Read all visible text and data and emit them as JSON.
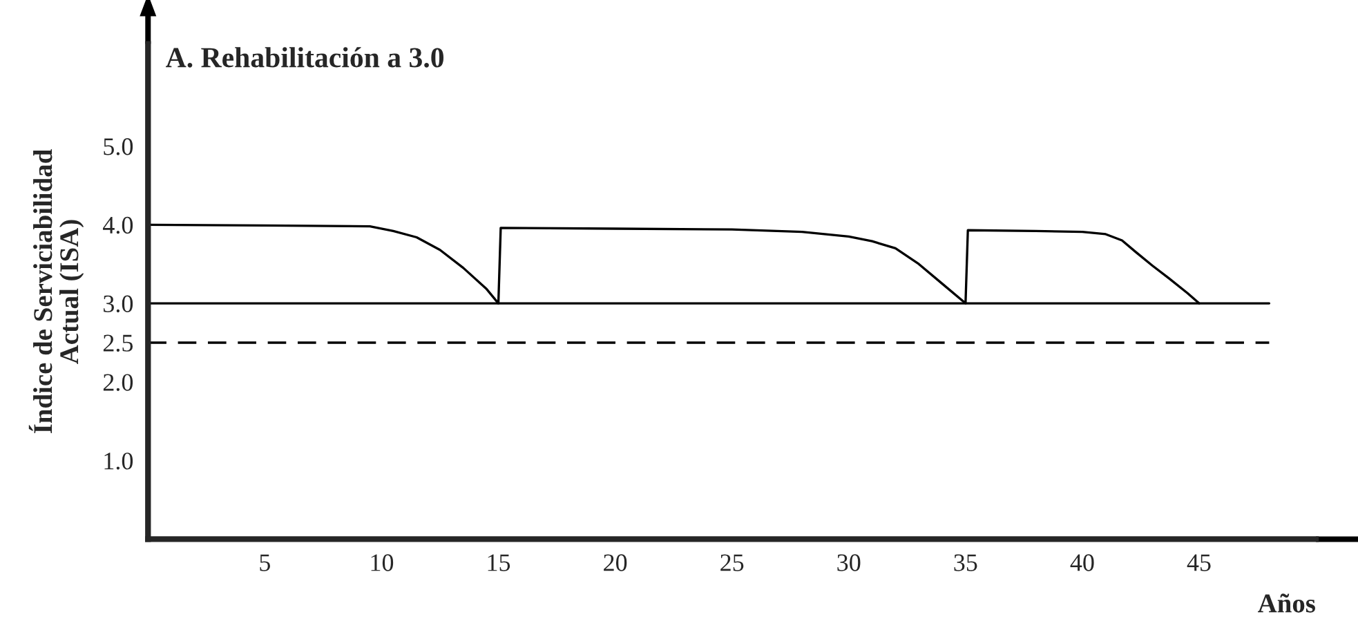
{
  "chart_data": {
    "type": "line",
    "title": "A. Rehabilitación a 3.0",
    "xlabel": "Años",
    "ylabel": "Índice de Serviciabilidad\nActual (ISA)",
    "xlim": [
      0,
      50
    ],
    "ylim": [
      0,
      6.3
    ],
    "xticks": [
      5,
      10,
      15,
      20,
      25,
      30,
      35,
      40,
      45
    ],
    "yticks": [
      {
        "value": 1,
        "label": "1.0"
      },
      {
        "value": 2,
        "label": "2.0"
      },
      {
        "value": 2.5,
        "label": "2.5"
      },
      {
        "value": 3,
        "label": "3.0"
      },
      {
        "value": 4,
        "label": "4.0"
      },
      {
        "value": 5,
        "label": "5.0"
      }
    ],
    "series": [
      {
        "color": "#000000",
        "x": [
          0,
          5,
          9.5,
          10.5,
          11.5,
          12.5,
          13.5,
          14.5,
          15,
          15.1,
          20,
          25,
          28,
          30,
          31,
          32,
          33,
          34,
          35,
          35.1,
          38,
          40,
          41,
          41.7,
          42.3,
          43,
          43.7,
          44.5,
          45
        ],
        "values": [
          4.0,
          3.99,
          3.98,
          3.92,
          3.84,
          3.68,
          3.45,
          3.18,
          3.0,
          3.96,
          3.95,
          3.94,
          3.91,
          3.85,
          3.79,
          3.7,
          3.5,
          3.25,
          3.0,
          3.93,
          3.92,
          3.91,
          3.88,
          3.8,
          3.65,
          3.48,
          3.32,
          3.13,
          3.0
        ]
      }
    ],
    "ref_lines": [
      {
        "axis": "y",
        "value": 3.0,
        "color": "#000000",
        "line_style": "solid"
      },
      {
        "axis": "y",
        "value": 2.5,
        "color": "#000000",
        "line_style": "dashed"
      }
    ],
    "grid": false,
    "legend": false,
    "marker": "none",
    "line_style": "solid"
  }
}
